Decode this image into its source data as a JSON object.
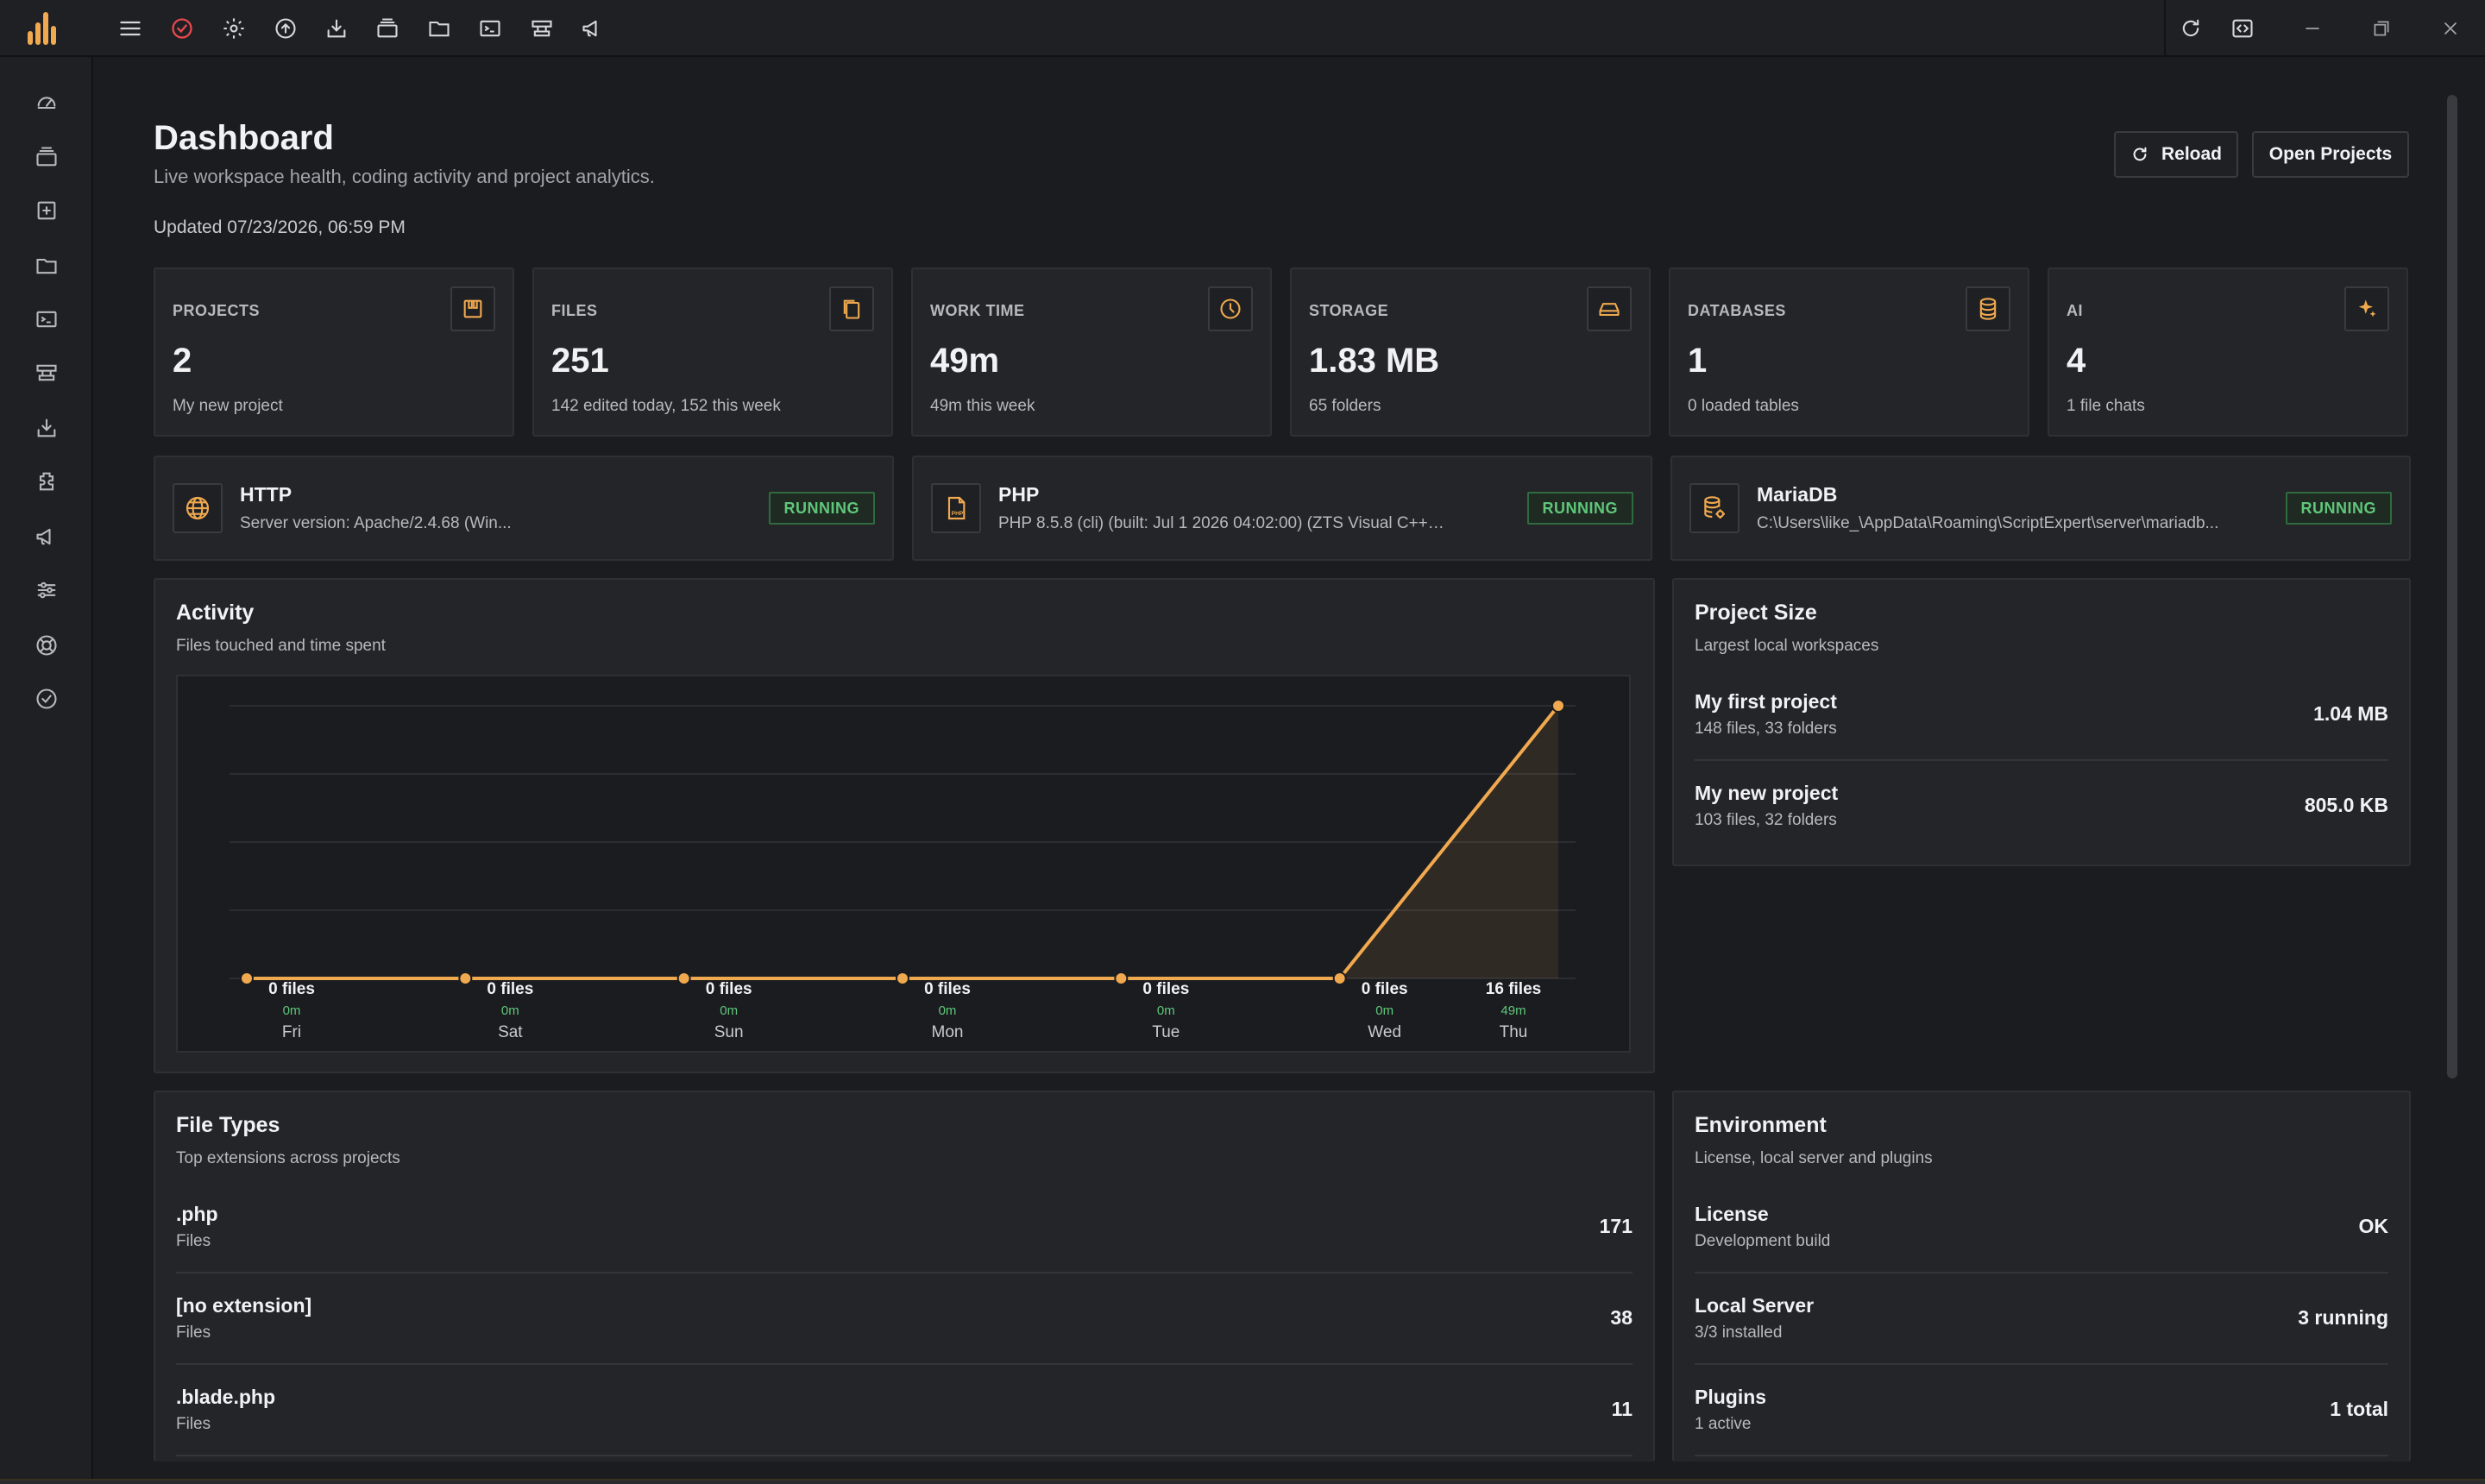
{
  "topbar": {
    "icons": [
      "menu-icon",
      "check-circle-icon",
      "gear-icon",
      "upload-icon",
      "download-icon",
      "projects-icon",
      "folder-icon",
      "terminal-icon",
      "server-icon",
      "megaphone-icon"
    ],
    "right_icons": [
      "refresh-icon",
      "code-icon"
    ],
    "window_controls": [
      "minimize-icon",
      "maximize-icon",
      "close-icon"
    ]
  },
  "sidebar": {
    "icons": [
      "dashboard-icon",
      "projects-icon",
      "new-icon",
      "folder-icon",
      "terminal-icon",
      "server-icon",
      "install-icon",
      "plugin-icon",
      "megaphone-icon",
      "sliders-icon",
      "help-icon",
      "check-circle-icon"
    ]
  },
  "header": {
    "title": "Dashboard",
    "subtitle": "Live workspace health, coding activity and project analytics.",
    "updated": "Updated 07/23/2026, 06:59 PM",
    "reload_label": "Reload",
    "open_projects_label": "Open Projects"
  },
  "stats": [
    {
      "label": "PROJECTS",
      "value": "2",
      "note": "My new project",
      "icon": "projects-icon"
    },
    {
      "label": "FILES",
      "value": "251",
      "note": "142 edited today, 152 this week",
      "icon": "files-icon"
    },
    {
      "label": "WORK TIME",
      "value": "49m",
      "note": "49m this week",
      "icon": "clock-icon"
    },
    {
      "label": "STORAGE",
      "value": "1.83 MB",
      "note": "65 folders",
      "icon": "drive-icon"
    },
    {
      "label": "DATABASES",
      "value": "1",
      "note": "0 loaded tables",
      "icon": "database-icon"
    },
    {
      "label": "AI",
      "value": "4",
      "note": "1 file chats",
      "icon": "sparkle-icon"
    }
  ],
  "services": [
    {
      "name": "HTTP",
      "desc": "Server version: Apache/2.4.68 (Win...",
      "status": "RUNNING",
      "icon": "globe-icon"
    },
    {
      "name": "PHP",
      "desc": "PHP 8.5.8 (cli) (built: Jul 1 2026 04:02:00) (ZTS Visual C++ 2...",
      "status": "RUNNING",
      "icon": "php-file-icon"
    },
    {
      "name": "MariaDB",
      "desc": "C:\\Users\\like_\\AppData\\Roaming\\ScriptExpert\\server\\mariadb...",
      "status": "RUNNING",
      "icon": "database-gear-icon"
    }
  ],
  "activity": {
    "title": "Activity",
    "subtitle": "Files touched and time spent"
  },
  "chart_data": {
    "type": "area",
    "categories": [
      "Fri",
      "Sat",
      "Sun",
      "Mon",
      "Tue",
      "Wed",
      "Thu"
    ],
    "values": [
      0,
      0,
      0,
      0,
      0,
      0,
      16
    ],
    "data_labels": [
      "0 files",
      "0 files",
      "0 files",
      "0 files",
      "0 files",
      "0 files",
      "16 files"
    ],
    "time_labels": [
      "0m",
      "0m",
      "0m",
      "0m",
      "0m",
      "0m",
      "49m"
    ],
    "ylim": [
      0,
      16
    ],
    "grid": true,
    "color": "#f0a94e"
  },
  "project_size": {
    "title": "Project Size",
    "subtitle": "Largest local workspaces",
    "rows": [
      {
        "name": "My first project",
        "sub": "148 files, 33 folders",
        "value": "1.04 MB"
      },
      {
        "name": "My new project",
        "sub": "103 files, 32 folders",
        "value": "805.0 KB"
      }
    ]
  },
  "file_types": {
    "title": "File Types",
    "subtitle": "Top extensions across projects",
    "rows": [
      {
        "name": ".php",
        "sub": "Files",
        "value": "171"
      },
      {
        "name": "[no extension]",
        "sub": "Files",
        "value": "38"
      },
      {
        "name": ".blade.php",
        "sub": "Files",
        "value": "11"
      }
    ]
  },
  "environment": {
    "title": "Environment",
    "subtitle": "License, local server and plugins",
    "rows": [
      {
        "name": "License",
        "sub": "Development build",
        "value": "OK"
      },
      {
        "name": "Local Server",
        "sub": "3/3 installed",
        "value": "3 running"
      },
      {
        "name": "Plugins",
        "sub": "1 active",
        "value": "1 total"
      }
    ]
  },
  "colors": {
    "accent": "#f0a94e",
    "running": "#5fc77a",
    "background": "#1b1c20",
    "card": "#242529"
  }
}
